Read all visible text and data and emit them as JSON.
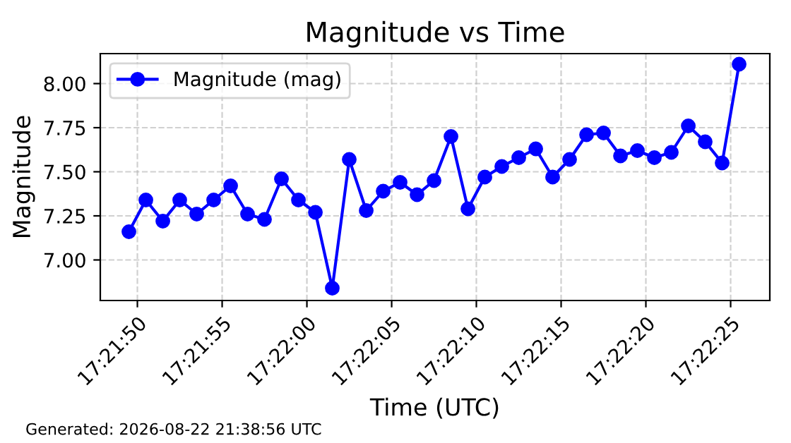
{
  "chart_data": {
    "type": "line",
    "title": "Magnitude vs Time",
    "xlabel": "Time (UTC)",
    "ylabel": "Magnitude",
    "x": [
      17.36375,
      17.364028,
      17.364306,
      17.364583,
      17.364861,
      17.365139,
      17.365417,
      17.365694,
      17.365972,
      17.36625,
      17.366528,
      17.366806,
      17.367083,
      17.367361,
      17.367639,
      17.367917,
      17.368194,
      17.368472,
      17.36875,
      17.369028,
      17.369306,
      17.369583,
      17.369861,
      17.370139,
      17.370417,
      17.370694,
      17.370972,
      17.37125,
      17.371528,
      17.371806,
      17.372083,
      17.372361,
      17.372639,
      17.372917,
      17.373194,
      17.373472,
      17.37375
    ],
    "series": [
      {
        "name": "Magnitude (mag)",
        "color": "#0000ff",
        "values": [
          7.16,
          7.34,
          7.22,
          7.34,
          7.26,
          7.34,
          7.42,
          7.26,
          7.23,
          7.46,
          7.34,
          7.27,
          6.84,
          7.57,
          7.28,
          7.39,
          7.44,
          7.37,
          7.45,
          7.7,
          7.29,
          7.47,
          7.53,
          7.58,
          7.63,
          7.47,
          7.57,
          7.71,
          7.72,
          7.59,
          7.62,
          7.58,
          7.61,
          7.76,
          7.67,
          7.55,
          8.11
        ]
      }
    ],
    "xlim": [
      17.363281,
      17.374253
    ],
    "xticks": [
      {
        "value": 17.363889,
        "label": "17:21:50"
      },
      {
        "value": 17.365278,
        "label": "17:21:55"
      },
      {
        "value": 17.366667,
        "label": "17:22:00"
      },
      {
        "value": 17.368056,
        "label": "17:22:05"
      },
      {
        "value": 17.369444,
        "label": "17:22:10"
      },
      {
        "value": 17.370833,
        "label": "17:22:15"
      },
      {
        "value": 17.372222,
        "label": "17:22:20"
      },
      {
        "value": 17.373611,
        "label": "17:22:25"
      }
    ],
    "ylim": [
      6.77,
      8.17
    ],
    "yticks": [
      {
        "value": 7.0,
        "label": "7.00"
      },
      {
        "value": 7.25,
        "label": "7.25"
      },
      {
        "value": 7.5,
        "label": "7.50"
      },
      {
        "value": 7.75,
        "label": "7.75"
      },
      {
        "value": 8.0,
        "label": "8.00"
      }
    ],
    "grid": true,
    "legend": "top left",
    "marker": "circle",
    "line_style": "solid",
    "annotations": [
      "Generated: 2026-08-22 21:38:56 UTC"
    ]
  }
}
